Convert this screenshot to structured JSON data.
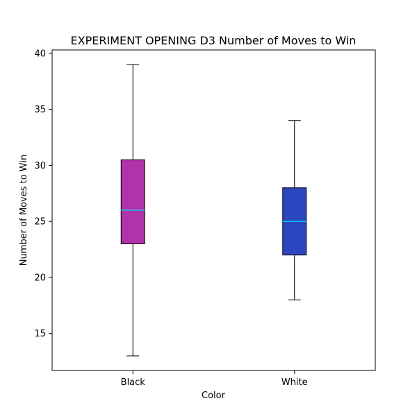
{
  "chart_data": {
    "type": "box",
    "title": "EXPERIMENT OPENING D3 Number of Moves to Win",
    "xlabel": "Color",
    "ylabel": "Number of Moves to Win",
    "ylim": [
      11.7,
      40.3
    ],
    "yticks": [
      15,
      20,
      25,
      30,
      35,
      40
    ],
    "categories": [
      "Black",
      "White"
    ],
    "series": [
      {
        "category": "Black",
        "whisker_low": 13,
        "q1": 23,
        "median": 26,
        "q3": 30.5,
        "whisker_high": 39,
        "color": "#b033aa"
      },
      {
        "category": "White",
        "whisker_low": 18,
        "q1": 22,
        "median": 25,
        "q3": 28,
        "whisker_high": 34,
        "color": "#2c46c0"
      }
    ],
    "median_color": "#00e5ff",
    "grid": false
  }
}
